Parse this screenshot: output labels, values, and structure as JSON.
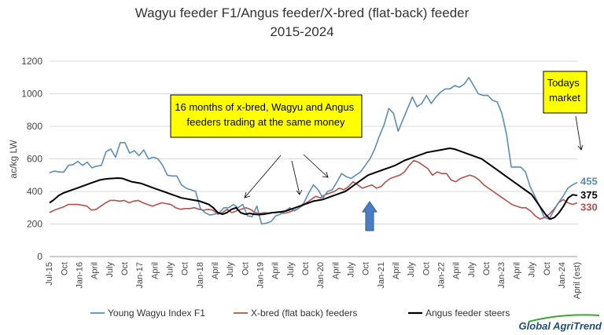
{
  "chart_data": {
    "type": "line",
    "title": "Wagyu feeder F1/Angus feeder/X-bred (flat-back) feeder",
    "subtitle": "2015-2024",
    "ylabel": "ac/kg LW",
    "xlabel": "",
    "ylim": [
      0,
      1200
    ],
    "y_ticks": [
      0,
      200,
      400,
      600,
      800,
      1000,
      1200
    ],
    "grid": true,
    "legend_position": "bottom",
    "x_tick_labels": [
      "Jul-15",
      "Oct",
      "Jan-16",
      "April",
      "July",
      "Oct",
      "Jan-17",
      "April",
      "July",
      "Oct",
      "Jan-18",
      "April",
      "July",
      "Oct",
      "Jan-19",
      "April",
      "July",
      "Oct",
      "Jan-20",
      "April",
      "July",
      "Oct",
      "Jan-21",
      "April",
      "July",
      "Oct",
      "Jan-22",
      "April",
      "July",
      "Oct",
      "Jan-23",
      "April",
      "July",
      "Oct",
      "Jan-24",
      "April (est)"
    ],
    "series": [
      {
        "name": "Young Wagyu Index  F1",
        "color": "#5b8db8",
        "end_label": "455",
        "values": [
          515,
          525,
          520,
          518,
          560,
          565,
          585,
          560,
          580,
          545,
          555,
          560,
          645,
          660,
          610,
          700,
          700,
          635,
          650,
          620,
          655,
          600,
          610,
          600,
          560,
          500,
          495,
          495,
          440,
          420,
          410,
          400,
          295,
          270,
          255,
          260,
          270,
          300,
          300,
          320,
          300,
          320,
          250,
          245,
          310,
          200,
          205,
          215,
          250,
          260,
          280,
          300,
          280,
          300,
          330,
          390,
          440,
          410,
          360,
          400,
          410,
          460,
          510,
          490,
          480,
          500,
          520,
          560,
          600,
          660,
          740,
          810,
          910,
          880,
          770,
          840,
          910,
          980,
          920,
          940,
          990,
          940,
          980,
          1010,
          1030,
          1030,
          1050,
          1040,
          1060,
          1100,
          1050,
          1000,
          990,
          990,
          960,
          950,
          880,
          750,
          550,
          550,
          550,
          520,
          430,
          370,
          310,
          240,
          230,
          280,
          330,
          370,
          420,
          440,
          455
        ]
      },
      {
        "name": "X-bred (flat back) feeders",
        "color": "#b5504c",
        "end_label": "330",
        "values": [
          270,
          285,
          295,
          305,
          320,
          320,
          320,
          315,
          310,
          285,
          290,
          310,
          330,
          345,
          345,
          340,
          345,
          330,
          340,
          345,
          330,
          320,
          310,
          320,
          330,
          325,
          320,
          300,
          290,
          295,
          295,
          300,
          290,
          285,
          290,
          285,
          260,
          270,
          290,
          270,
          280,
          290,
          300,
          290,
          270,
          265,
          270,
          265,
          270,
          275,
          265,
          270,
          280,
          290,
          310,
          330,
          350,
          370,
          360,
          380,
          390,
          400,
          420,
          410,
          430,
          460,
          440,
          420,
          430,
          440,
          420,
          430,
          460,
          480,
          490,
          500,
          520,
          560,
          590,
          580,
          560,
          540,
          500,
          520,
          510,
          510,
          470,
          460,
          480,
          490,
          500,
          490,
          470,
          440,
          420,
          400,
          380,
          360,
          340,
          320,
          310,
          300,
          300,
          280,
          250,
          230,
          240,
          260,
          290,
          330,
          350,
          330,
          320,
          330
        ]
      },
      {
        "name": "Angus feeder steers",
        "color": "#000000",
        "end_label": "375",
        "values": [
          330,
          350,
          375,
          390,
          400,
          410,
          420,
          430,
          440,
          450,
          460,
          470,
          475,
          478,
          480,
          482,
          480,
          470,
          460,
          455,
          450,
          440,
          430,
          420,
          410,
          400,
          390,
          380,
          370,
          360,
          355,
          350,
          345,
          340,
          330,
          320,
          300,
          270,
          260,
          270,
          290,
          300,
          270,
          260,
          265,
          260,
          258,
          260,
          265,
          270,
          272,
          275,
          280,
          290,
          300,
          310,
          320,
          330,
          340,
          345,
          350,
          360,
          370,
          380,
          390,
          400,
          420,
          440,
          460,
          480,
          500,
          510,
          520,
          530,
          540,
          550,
          560,
          575,
          590,
          600,
          610,
          620,
          630,
          640,
          645,
          650,
          655,
          660,
          665,
          660,
          650,
          640,
          630,
          620,
          610,
          600,
          580,
          560,
          540,
          520,
          500,
          480,
          460,
          440,
          420,
          400,
          380,
          340,
          300,
          260,
          230,
          240,
          270,
          310,
          360,
          380,
          375
        ]
      }
    ],
    "annotations": {
      "note": "16 months of x-bred, Wagyu and Angus feeders trading at the same money",
      "market_label": "Todays market"
    }
  },
  "brand": {
    "text": "Global AgriTrend"
  }
}
